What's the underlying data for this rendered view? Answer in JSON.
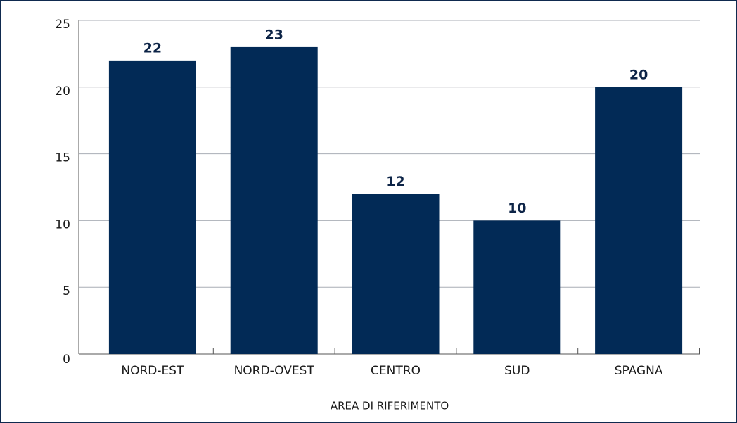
{
  "chart_data": {
    "type": "bar",
    "categories": [
      "NORD-EST",
      "NORD-OVEST",
      "CENTRO",
      "SUD",
      "SPAGNA"
    ],
    "values": [
      22,
      23,
      12,
      10,
      20
    ],
    "color": "#022a56",
    "xlabel": "AREA DI RIFERIMENTO",
    "ylim": [
      0,
      25
    ],
    "yticks": [
      0,
      5,
      10,
      15,
      20,
      25
    ],
    "grid": true
  }
}
